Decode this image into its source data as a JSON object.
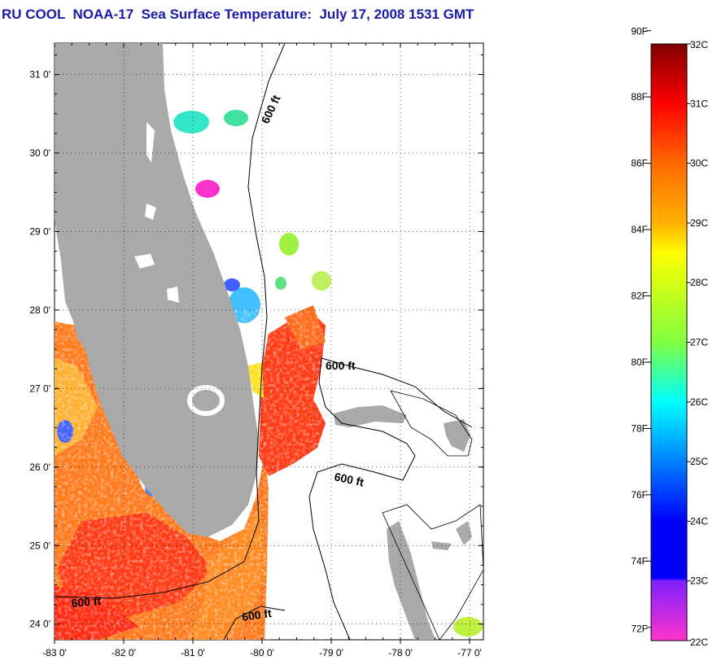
{
  "title": "RU COOL  NOAA-17  Sea Surface Temperature:  July 17, 2008 1531 GMT",
  "map": {
    "lon_range": [
      -83,
      -76.8
    ],
    "lat_range": [
      23.8,
      31.4
    ],
    "lat_ticks": [
      {
        "value": 31,
        "label": "31 0'"
      },
      {
        "value": 30,
        "label": "30 0'"
      },
      {
        "value": 29,
        "label": "29 0'"
      },
      {
        "value": 28,
        "label": "28 0'"
      },
      {
        "value": 27,
        "label": "27 0'"
      },
      {
        "value": 26,
        "label": "26 0'"
      },
      {
        "value": 25,
        "label": "25 0'"
      },
      {
        "value": 24,
        "label": "24 0'"
      }
    ],
    "lon_ticks": [
      {
        "value": -83,
        "label": "-83 0'"
      },
      {
        "value": -82,
        "label": "-82 0'"
      },
      {
        "value": -81,
        "label": "-81 0'"
      },
      {
        "value": -80,
        "label": "-80 0'"
      },
      {
        "value": -79,
        "label": "-79 0'"
      },
      {
        "value": -78,
        "label": "-78 0'"
      },
      {
        "value": -77,
        "label": "-77 0'"
      }
    ],
    "contour_labels": [
      "600 ft",
      "600 ft",
      "600 ft",
      "600 ft",
      "600 ft"
    ],
    "colors": {
      "land": "#a9a9a9",
      "no_data": "#ffffff",
      "warm_core": "#ff2a10",
      "warm_band": "#ff7a1c",
      "cool_patch": "#33e6c8",
      "cold_patch": "#ff33cc"
    }
  },
  "colorbar": {
    "fahrenheit": [
      {
        "value": 90,
        "label": "90F"
      },
      {
        "value": 88,
        "label": "88F"
      },
      {
        "value": 86,
        "label": "86F"
      },
      {
        "value": 84,
        "label": "84F"
      },
      {
        "value": 82,
        "label": "82F"
      },
      {
        "value": 80,
        "label": "80F"
      },
      {
        "value": 78,
        "label": "78F"
      },
      {
        "value": 76,
        "label": "76F"
      },
      {
        "value": 74,
        "label": "74F"
      },
      {
        "value": 72,
        "label": "72F"
      }
    ],
    "celsius": [
      {
        "value": 32,
        "label": "32C"
      },
      {
        "value": 31,
        "label": "31C"
      },
      {
        "value": 30,
        "label": "30C"
      },
      {
        "value": 29,
        "label": "29C"
      },
      {
        "value": 28,
        "label": "28C"
      },
      {
        "value": 27,
        "label": "27C"
      },
      {
        "value": 26,
        "label": "26C"
      },
      {
        "value": 25,
        "label": "25C"
      },
      {
        "value": 24,
        "label": "24C"
      },
      {
        "value": 23,
        "label": "23C"
      },
      {
        "value": 22,
        "label": "22C"
      }
    ],
    "color_stops": [
      {
        "c": 32,
        "color": "#800000"
      },
      {
        "c": 31,
        "color": "#ff0000"
      },
      {
        "c": 30,
        "color": "#ff6a00"
      },
      {
        "c": 29,
        "color": "#ffb000"
      },
      {
        "c": 28.5,
        "color": "#ffff00"
      },
      {
        "c": 27,
        "color": "#80ff40"
      },
      {
        "c": 26,
        "color": "#00ffff"
      },
      {
        "c": 25,
        "color": "#0080ff"
      },
      {
        "c": 24,
        "color": "#0000ff"
      },
      {
        "c": 23.05,
        "color": "#0000ff"
      },
      {
        "c": 23,
        "color": "#8020ff"
      },
      {
        "c": 22,
        "color": "#ff33cc"
      }
    ]
  }
}
